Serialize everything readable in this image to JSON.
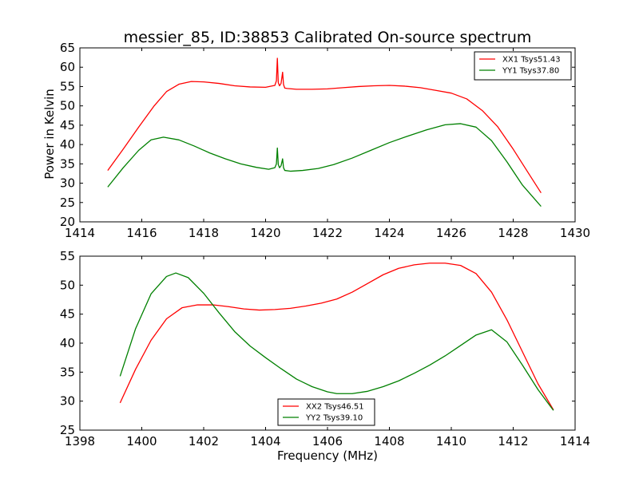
{
  "title": "messier_85, ID:38853 Calibrated On-source spectrum",
  "chart_data": [
    {
      "type": "line",
      "title": "messier_85, ID:38853 Calibrated On-source spectrum",
      "xlabel": "",
      "ylabel": "Power in Kelvin",
      "xlim": [
        1414,
        1430
      ],
      "ylim": [
        20,
        65
      ],
      "xticks": [
        1414,
        1416,
        1418,
        1420,
        1422,
        1424,
        1426,
        1428,
        1430
      ],
      "yticks": [
        20,
        25,
        30,
        35,
        40,
        45,
        50,
        55,
        60,
        65
      ],
      "grid": false,
      "legend_position": "top-right",
      "series": [
        {
          "name": "XX1 Tsys51.43",
          "color": "#ff0000",
          "x": [
            1414.9,
            1415.4,
            1415.9,
            1416.4,
            1416.8,
            1417.2,
            1417.6,
            1418.0,
            1418.5,
            1419.0,
            1419.5,
            1420.0,
            1420.3,
            1420.35,
            1420.38,
            1420.41,
            1420.45,
            1420.5,
            1420.55,
            1420.58,
            1420.62,
            1420.7,
            1421.0,
            1421.5,
            1422.0,
            1422.5,
            1423.0,
            1423.5,
            1424.0,
            1424.5,
            1425.0,
            1425.5,
            1426.0,
            1426.5,
            1427.0,
            1427.5,
            1428.0,
            1428.5,
            1428.9
          ],
          "y": [
            33.3,
            38.8,
            44.5,
            50.0,
            53.7,
            55.6,
            56.3,
            56.2,
            55.8,
            55.2,
            54.9,
            54.8,
            55.3,
            56.5,
            62.3,
            56.0,
            55.2,
            55.8,
            58.7,
            55.5,
            54.6,
            54.5,
            54.3,
            54.3,
            54.4,
            54.7,
            55.0,
            55.2,
            55.3,
            55.1,
            54.7,
            54.0,
            53.3,
            51.8,
            48.8,
            44.6,
            38.8,
            32.5,
            27.5
          ]
        },
        {
          "name": "YY1 Tsys37.80",
          "color": "#008000",
          "x": [
            1414.9,
            1415.4,
            1415.9,
            1416.3,
            1416.7,
            1417.2,
            1417.7,
            1418.2,
            1418.7,
            1419.2,
            1419.7,
            1420.1,
            1420.3,
            1420.35,
            1420.38,
            1420.41,
            1420.45,
            1420.5,
            1420.55,
            1420.58,
            1420.62,
            1420.8,
            1421.2,
            1421.7,
            1422.2,
            1422.8,
            1423.4,
            1424.0,
            1424.6,
            1425.2,
            1425.8,
            1426.3,
            1426.8,
            1427.3,
            1427.8,
            1428.3,
            1428.9
          ],
          "y": [
            29.0,
            34.0,
            38.5,
            41.2,
            41.9,
            41.2,
            39.6,
            37.8,
            36.3,
            35.0,
            34.1,
            33.6,
            34.0,
            35.0,
            39.1,
            34.8,
            34.0,
            34.5,
            36.3,
            34.0,
            33.3,
            33.1,
            33.3,
            33.8,
            34.8,
            36.5,
            38.5,
            40.5,
            42.2,
            43.8,
            45.1,
            45.4,
            44.5,
            41.0,
            35.5,
            29.5,
            24.0
          ]
        }
      ]
    },
    {
      "type": "line",
      "title": "",
      "xlabel": "Frequency (MHz)",
      "ylabel": "",
      "xlim": [
        1398,
        1414
      ],
      "ylim": [
        25,
        55
      ],
      "xticks": [
        1398,
        1400,
        1402,
        1404,
        1406,
        1408,
        1410,
        1412,
        1414
      ],
      "yticks": [
        25,
        30,
        35,
        40,
        45,
        50,
        55
      ],
      "grid": false,
      "legend_position": "bottom-center",
      "series": [
        {
          "name": "XX2 Tsys46.51",
          "color": "#ff0000",
          "x": [
            1399.3,
            1399.8,
            1400.3,
            1400.8,
            1401.3,
            1401.8,
            1402.3,
            1402.8,
            1403.3,
            1403.8,
            1404.3,
            1404.8,
            1405.3,
            1405.8,
            1406.3,
            1406.8,
            1407.3,
            1407.8,
            1408.3,
            1408.8,
            1409.3,
            1409.8,
            1410.3,
            1410.8,
            1411.3,
            1411.8,
            1412.3,
            1412.8,
            1413.3
          ],
          "y": [
            29.7,
            35.5,
            40.5,
            44.2,
            46.1,
            46.6,
            46.6,
            46.3,
            45.9,
            45.7,
            45.8,
            46.0,
            46.4,
            46.9,
            47.6,
            48.8,
            50.3,
            51.8,
            52.9,
            53.5,
            53.8,
            53.8,
            53.4,
            52.0,
            48.8,
            44.0,
            38.5,
            33.0,
            28.5
          ]
        },
        {
          "name": "YY2 Tsys39.10",
          "color": "#008000",
          "x": [
            1399.3,
            1399.8,
            1400.3,
            1400.8,
            1401.1,
            1401.5,
            1402.0,
            1402.5,
            1403.0,
            1403.5,
            1404.0,
            1404.5,
            1405.0,
            1405.5,
            1406.0,
            1406.3,
            1406.8,
            1407.3,
            1407.8,
            1408.3,
            1408.8,
            1409.3,
            1409.8,
            1410.3,
            1410.8,
            1411.3,
            1411.8,
            1412.3,
            1412.8,
            1413.3
          ],
          "y": [
            34.3,
            42.5,
            48.5,
            51.5,
            52.1,
            51.3,
            48.6,
            45.2,
            42.0,
            39.5,
            37.5,
            35.6,
            33.8,
            32.5,
            31.6,
            31.3,
            31.3,
            31.7,
            32.5,
            33.5,
            34.8,
            36.2,
            37.8,
            39.6,
            41.4,
            42.3,
            40.2,
            36.2,
            32.0,
            28.4
          ]
        }
      ]
    }
  ]
}
